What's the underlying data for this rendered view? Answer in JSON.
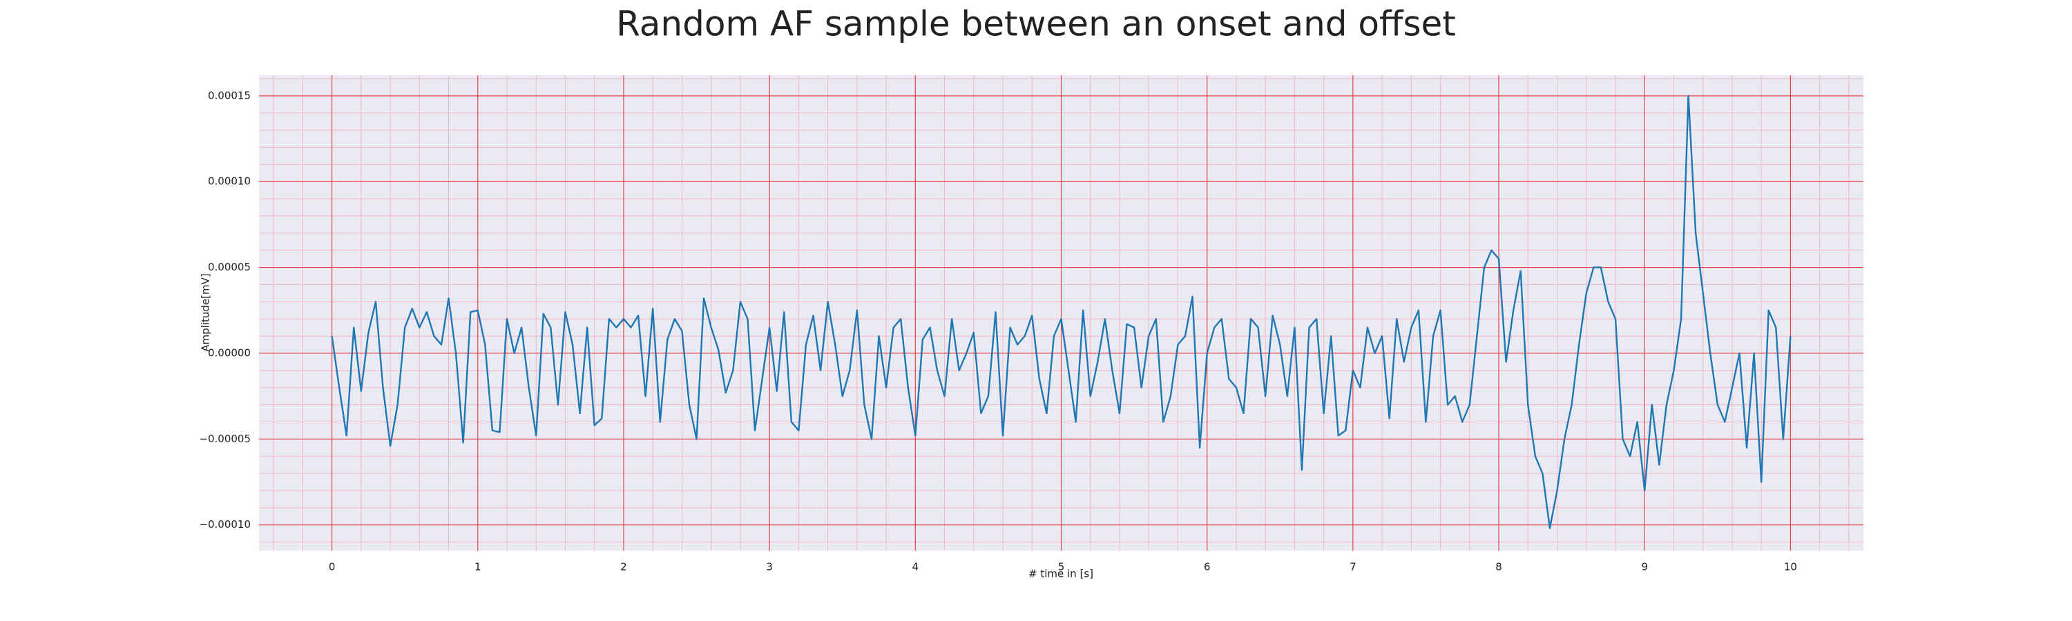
{
  "chart_data": {
    "type": "line",
    "title": "Random AF sample between an onset and offset",
    "xlabel": "# time in [s]",
    "ylabel": "Amplitude[mV]",
    "color": "#1f77b4",
    "grid": true,
    "minor_grid": true,
    "xlim": [
      -0.5,
      10.5
    ],
    "ylim": [
      -0.000115,
      0.000162
    ],
    "xticks": [
      0,
      1,
      2,
      3,
      4,
      5,
      6,
      7,
      8,
      9,
      10
    ],
    "yticks": [
      {
        "value": -0.0001,
        "label": "−0.00010"
      },
      {
        "value": -5e-05,
        "label": "−0.00005"
      },
      {
        "value": 0,
        "label": "0.00000"
      },
      {
        "value": 5e-05,
        "label": "0.00005"
      },
      {
        "value": 0.0001,
        "label": "0.00010"
      },
      {
        "value": 0.00015,
        "label": "0.00015"
      }
    ],
    "x": [
      0,
      0.05,
      0.1,
      0.15,
      0.2,
      0.25,
      0.3,
      0.35,
      0.4,
      0.45,
      0.5,
      0.55,
      0.6,
      0.65,
      0.7,
      0.75,
      0.8,
      0.85,
      0.9,
      0.95,
      1,
      1.05,
      1.1,
      1.15,
      1.2,
      1.25,
      1.3,
      1.35,
      1.4,
      1.45,
      1.5,
      1.55,
      1.6,
      1.65,
      1.7,
      1.75,
      1.8,
      1.85,
      1.9,
      1.95,
      2,
      2.05,
      2.1,
      2.15,
      2.2,
      2.25,
      2.3,
      2.35,
      2.4,
      2.45,
      2.5,
      2.55,
      2.6,
      2.65,
      2.7,
      2.75,
      2.8,
      2.85,
      2.9,
      2.95,
      3,
      3.05,
      3.1,
      3.15,
      3.2,
      3.25,
      3.3,
      3.35,
      3.4,
      3.45,
      3.5,
      3.55,
      3.6,
      3.65,
      3.7,
      3.75,
      3.8,
      3.85,
      3.9,
      3.95,
      4,
      4.05,
      4.1,
      4.15,
      4.2,
      4.25,
      4.3,
      4.35,
      4.4,
      4.45,
      4.5,
      4.55,
      4.6,
      4.65,
      4.7,
      4.75,
      4.8,
      4.85,
      4.9,
      4.95,
      5,
      5.05,
      5.1,
      5.15,
      5.2,
      5.25,
      5.3,
      5.35,
      5.4,
      5.45,
      5.5,
      5.55,
      5.6,
      5.65,
      5.7,
      5.75,
      5.8,
      5.85,
      5.9,
      5.95,
      6,
      6.05,
      6.1,
      6.15,
      6.2,
      6.25,
      6.3,
      6.35,
      6.4,
      6.45,
      6.5,
      6.55,
      6.6,
      6.65,
      6.7,
      6.75,
      6.8,
      6.85,
      6.9,
      6.95,
      7,
      7.05,
      7.1,
      7.15,
      7.2,
      7.25,
      7.3,
      7.35,
      7.4,
      7.45,
      7.5,
      7.55,
      7.6,
      7.65,
      7.7,
      7.75,
      7.8,
      7.85,
      7.9,
      7.95,
      8,
      8.05,
      8.1,
      8.15,
      8.2,
      8.25,
      8.3,
      8.35,
      8.4,
      8.45,
      8.5,
      8.55,
      8.6,
      8.65,
      8.7,
      8.75,
      8.8,
      8.85,
      8.9,
      8.95,
      9,
      9.05,
      9.1,
      9.15,
      9.2,
      9.25,
      9.3,
      9.35,
      9.4,
      9.45,
      9.5,
      9.55,
      9.6,
      9.65,
      9.7,
      9.75,
      9.8,
      9.85,
      9.9,
      9.95,
      10
    ],
    "values": [
      1e-05,
      -2e-05,
      -4.8e-05,
      1.5e-05,
      -2.2e-05,
      1.2e-05,
      3e-05,
      -2e-05,
      -5.4e-05,
      -3e-05,
      1.5e-05,
      2.6e-05,
      1.5e-05,
      2.4e-05,
      1e-05,
      5e-06,
      3.2e-05,
      0,
      -5.2e-05,
      2.4e-05,
      2.5e-05,
      5e-06,
      -4.5e-05,
      -4.6e-05,
      2e-05,
      0,
      1.5e-05,
      -2e-05,
      -4.8e-05,
      2.3e-05,
      1.5e-05,
      -3e-05,
      2.4e-05,
      5e-06,
      -3.5e-05,
      1.5e-05,
      -4.2e-05,
      -3.8e-05,
      2e-05,
      1.5e-05,
      2e-05,
      1.5e-05,
      2.2e-05,
      -2.5e-05,
      2.6e-05,
      -4e-05,
      8e-06,
      2e-05,
      1.3e-05,
      -3e-05,
      -5e-05,
      3.2e-05,
      1.5e-05,
      2e-06,
      -2.3e-05,
      -1e-05,
      3e-05,
      2e-05,
      -4.5e-05,
      -1.5e-05,
      1.5e-05,
      -2.2e-05,
      2.4e-05,
      -4e-05,
      -4.5e-05,
      5e-06,
      2.2e-05,
      -1e-05,
      3e-05,
      5e-06,
      -2.5e-05,
      -1e-05,
      2.5e-05,
      -3e-05,
      -5e-05,
      1e-05,
      -2e-05,
      1.5e-05,
      2e-05,
      -2e-05,
      -4.8e-05,
      8e-06,
      1.5e-05,
      -1e-05,
      -2.5e-05,
      2e-05,
      -1e-05,
      0,
      1.2e-05,
      -3.5e-05,
      -2.5e-05,
      2.4e-05,
      -4.8e-05,
      1.5e-05,
      5e-06,
      1e-05,
      2.2e-05,
      -1.5e-05,
      -3.5e-05,
      1e-05,
      2e-05,
      -1e-05,
      -4e-05,
      2.5e-05,
      -2.5e-05,
      -5e-06,
      2e-05,
      -1e-05,
      -3.5e-05,
      1.7e-05,
      1.5e-05,
      -2e-05,
      1e-05,
      2e-05,
      -4e-05,
      -2.5e-05,
      5e-06,
      1e-05,
      3.3e-05,
      -5.5e-05,
      0,
      1.5e-05,
      2e-05,
      -1.5e-05,
      -2e-05,
      -3.5e-05,
      2e-05,
      1.5e-05,
      -2.5e-05,
      2.2e-05,
      5e-06,
      -2.5e-05,
      1.5e-05,
      -6.8e-05,
      1.5e-05,
      2e-05,
      -3.5e-05,
      1e-05,
      -4.8e-05,
      -4.5e-05,
      -1e-05,
      -2e-05,
      1.5e-05,
      0,
      1e-05,
      -3.8e-05,
      2e-05,
      -5e-06,
      1.5e-05,
      2.5e-05,
      -4e-05,
      1e-05,
      2.5e-05,
      -3e-05,
      -2.5e-05,
      -4e-05,
      -3e-05,
      1e-05,
      5e-05,
      6e-05,
      5.5e-05,
      -5e-06,
      2.5e-05,
      4.8e-05,
      -3e-05,
      -6e-05,
      -7e-05,
      -0.000102,
      -8e-05,
      -5e-05,
      -3e-05,
      5e-06,
      3.5e-05,
      5e-05,
      5e-05,
      3e-05,
      2e-05,
      -5e-05,
      -6e-05,
      -4e-05,
      -8e-05,
      -3e-05,
      -6.5e-05,
      -3e-05,
      -1e-05,
      2e-05,
      0.00015,
      7e-05,
      3.5e-05,
      0,
      -3e-05,
      -4e-05,
      -2e-05,
      0,
      -5.5e-05,
      0,
      -7.5e-05,
      2.5e-05,
      1.5e-05,
      -5e-05,
      1e-05
    ]
  }
}
